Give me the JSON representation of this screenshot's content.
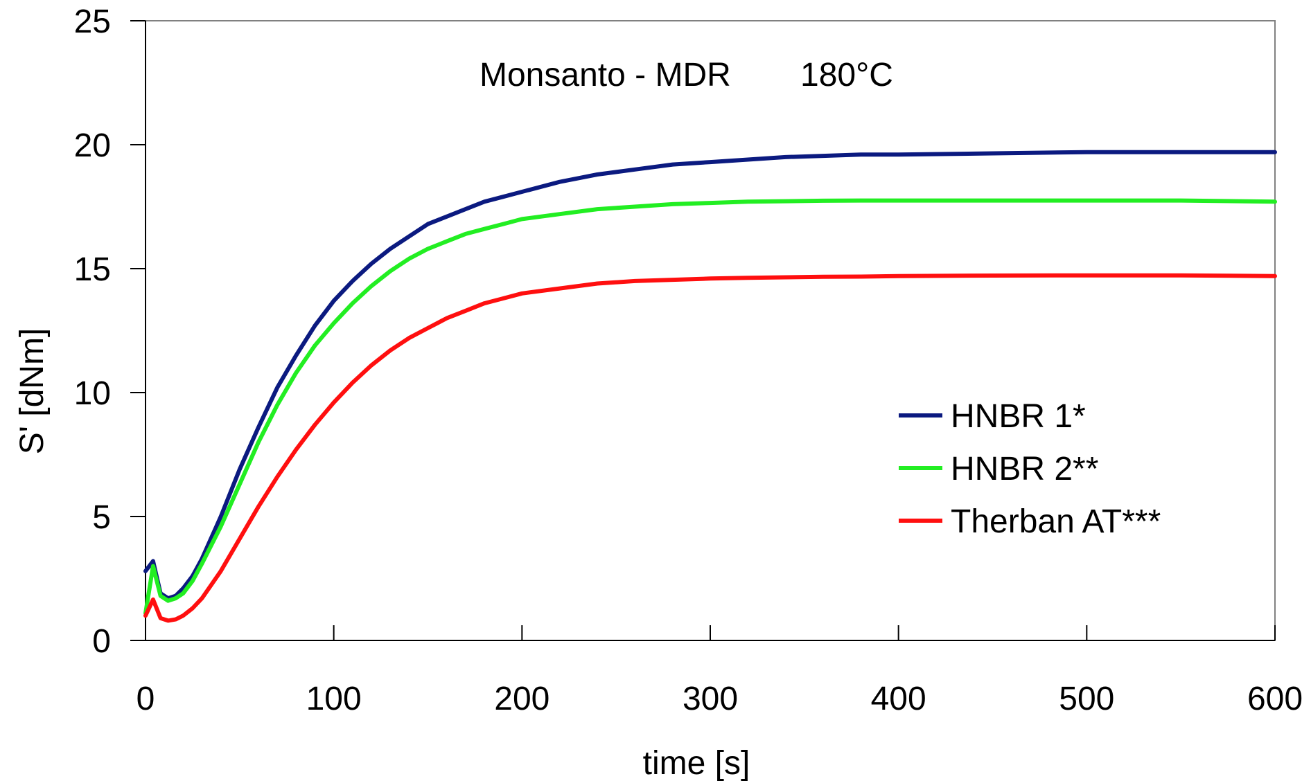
{
  "chart_data": {
    "type": "line",
    "title": "Monsanto - MDR",
    "subtitle": "180°C",
    "xlabel": "time [s]",
    "ylabel": "S' [dNm]",
    "xlim": [
      0,
      600
    ],
    "ylim": [
      0,
      25
    ],
    "xticks": [
      0,
      100,
      200,
      300,
      400,
      500,
      600
    ],
    "yticks": [
      0,
      5,
      10,
      15,
      20,
      25
    ],
    "grid": false,
    "legend_position": "right",
    "series": [
      {
        "name": "HNBR 1*",
        "color": "#0b1a80",
        "x": [
          0,
          4,
          8,
          12,
          16,
          20,
          25,
          30,
          40,
          50,
          60,
          70,
          80,
          90,
          100,
          110,
          120,
          130,
          140,
          150,
          160,
          170,
          180,
          190,
          200,
          220,
          240,
          260,
          280,
          300,
          320,
          340,
          360,
          380,
          400,
          450,
          500,
          550,
          600
        ],
        "y": [
          2.8,
          3.2,
          1.9,
          1.7,
          1.8,
          2.1,
          2.6,
          3.3,
          5.0,
          6.9,
          8.6,
          10.2,
          11.5,
          12.7,
          13.7,
          14.5,
          15.2,
          15.8,
          16.3,
          16.8,
          17.1,
          17.4,
          17.7,
          17.9,
          18.1,
          18.5,
          18.8,
          19.0,
          19.2,
          19.3,
          19.4,
          19.5,
          19.55,
          19.6,
          19.6,
          19.65,
          19.7,
          19.7,
          19.7
        ]
      },
      {
        "name": "HNBR 2**",
        "color": "#22ee22",
        "x": [
          0,
          4,
          8,
          12,
          16,
          20,
          25,
          30,
          40,
          50,
          60,
          70,
          80,
          90,
          100,
          110,
          120,
          130,
          140,
          150,
          160,
          170,
          180,
          190,
          200,
          220,
          240,
          260,
          280,
          300,
          320,
          340,
          360,
          380,
          400,
          450,
          500,
          550,
          600
        ],
        "y": [
          1.1,
          3.0,
          1.8,
          1.6,
          1.7,
          1.9,
          2.4,
          3.1,
          4.6,
          6.3,
          8.0,
          9.5,
          10.8,
          11.9,
          12.8,
          13.6,
          14.3,
          14.9,
          15.4,
          15.8,
          16.1,
          16.4,
          16.6,
          16.8,
          17.0,
          17.2,
          17.4,
          17.5,
          17.6,
          17.65,
          17.7,
          17.72,
          17.74,
          17.75,
          17.75,
          17.75,
          17.75,
          17.75,
          17.7
        ]
      },
      {
        "name": "Therban AT***",
        "color": "#ff0f0f",
        "x": [
          0,
          4,
          8,
          12,
          16,
          20,
          25,
          30,
          40,
          50,
          60,
          70,
          80,
          90,
          100,
          110,
          120,
          130,
          140,
          150,
          160,
          170,
          180,
          190,
          200,
          220,
          240,
          260,
          280,
          300,
          320,
          340,
          360,
          380,
          400,
          450,
          500,
          550,
          600
        ],
        "y": [
          1.0,
          1.65,
          0.9,
          0.8,
          0.85,
          1.0,
          1.3,
          1.7,
          2.8,
          4.1,
          5.4,
          6.6,
          7.7,
          8.7,
          9.6,
          10.4,
          11.1,
          11.7,
          12.2,
          12.6,
          13.0,
          13.3,
          13.6,
          13.8,
          14.0,
          14.2,
          14.4,
          14.5,
          14.55,
          14.6,
          14.63,
          14.65,
          14.67,
          14.68,
          14.7,
          14.72,
          14.73,
          14.73,
          14.7
        ]
      }
    ]
  }
}
